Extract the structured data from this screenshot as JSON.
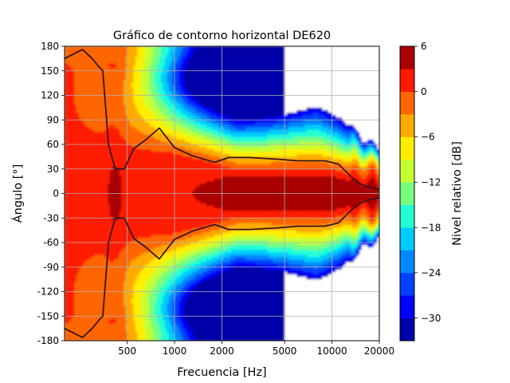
{
  "chart_data": {
    "type": "heatmap",
    "title": "Gráfico de contorno horizontal DE620",
    "xlabel": "Frecuencia [Hz]",
    "ylabel": "Ángulo [°]",
    "x_scale": "log",
    "xlim": [
      200,
      20000
    ],
    "ylim": [
      -180,
      180
    ],
    "x_ticks": [
      {
        "value": 500,
        "label": "500"
      },
      {
        "value": 1000,
        "label": "1000"
      },
      {
        "value": 2000,
        "label": "2000"
      },
      {
        "value": 5000,
        "label": "5000"
      },
      {
        "value": 10000,
        "label": "10000"
      },
      {
        "value": 20000,
        "label": "20000"
      }
    ],
    "y_ticks": [
      {
        "value": 180,
        "label": "180"
      },
      {
        "value": 150,
        "label": "150"
      },
      {
        "value": 120,
        "label": "120"
      },
      {
        "value": 90,
        "label": "90"
      },
      {
        "value": 60,
        "label": "60"
      },
      {
        "value": 30,
        "label": "30"
      },
      {
        "value": 0,
        "label": "0"
      },
      {
        "value": -30,
        "label": "-30"
      },
      {
        "value": -60,
        "label": "-60"
      },
      {
        "value": -90,
        "label": "-90"
      },
      {
        "value": -120,
        "label": "-120"
      },
      {
        "value": -150,
        "label": "-150"
      },
      {
        "value": -180,
        "label": "-180"
      }
    ],
    "grid": true,
    "colorbar": {
      "label": "Nivel relativo [dB]",
      "range": [
        -33,
        6
      ],
      "levels": [
        -33,
        -30,
        -27,
        -24,
        -21,
        -18,
        -15,
        -12,
        -9,
        -6,
        -3,
        0,
        3,
        6
      ],
      "colors": [
        "#0000a8",
        "#0000ff",
        "#0040ff",
        "#0088ff",
        "#00ccff",
        "#22ffd4",
        "#77ff80",
        "#c6ff30",
        "#ffee00",
        "#ffaa00",
        "#ff6600",
        "#ff1a00",
        "#a80000"
      ],
      "ticks": [
        {
          "value": 6,
          "label": "6"
        },
        {
          "value": 0,
          "label": "0"
        },
        {
          "value": -6,
          "label": "−6"
        },
        {
          "value": -12,
          "label": "−12"
        },
        {
          "value": -18,
          "label": "−18"
        },
        {
          "value": -24,
          "label": "−24"
        },
        {
          "value": -30,
          "label": "−30"
        }
      ]
    },
    "contour_line": {
      "level_db": -6,
      "color": "#3a1424",
      "upper_points": [
        [
          200,
          165
        ],
        [
          260,
          176
        ],
        [
          300,
          165
        ],
        [
          330,
          155
        ],
        [
          350,
          150
        ],
        [
          360,
          120
        ],
        [
          370,
          90
        ],
        [
          380,
          60
        ],
        [
          420,
          30
        ],
        [
          480,
          30
        ],
        [
          550,
          55
        ],
        [
          650,
          65
        ],
        [
          800,
          80
        ],
        [
          1000,
          56
        ],
        [
          1300,
          46
        ],
        [
          1800,
          38
        ],
        [
          2200,
          44
        ],
        [
          3000,
          44
        ],
        [
          4500,
          42
        ],
        [
          6000,
          40
        ],
        [
          9000,
          40
        ],
        [
          11000,
          36
        ],
        [
          13000,
          22
        ],
        [
          15000,
          12
        ],
        [
          17000,
          8
        ],
        [
          20000,
          5
        ]
      ],
      "lower_points": [
        [
          200,
          -165
        ],
        [
          260,
          -176
        ],
        [
          300,
          -165
        ],
        [
          330,
          -155
        ],
        [
          350,
          -150
        ],
        [
          360,
          -120
        ],
        [
          370,
          -90
        ],
        [
          380,
          -60
        ],
        [
          420,
          -30
        ],
        [
          480,
          -30
        ],
        [
          550,
          -55
        ],
        [
          650,
          -65
        ],
        [
          800,
          -80
        ],
        [
          1000,
          -56
        ],
        [
          1300,
          -46
        ],
        [
          1800,
          -38
        ],
        [
          2200,
          -44
        ],
        [
          3000,
          -44
        ],
        [
          4500,
          -42
        ],
        [
          6000,
          -40
        ],
        [
          9000,
          -40
        ],
        [
          11000,
          -36
        ],
        [
          13000,
          -22
        ],
        [
          15000,
          -12
        ],
        [
          17000,
          -8
        ],
        [
          20000,
          -5
        ]
      ]
    }
  }
}
